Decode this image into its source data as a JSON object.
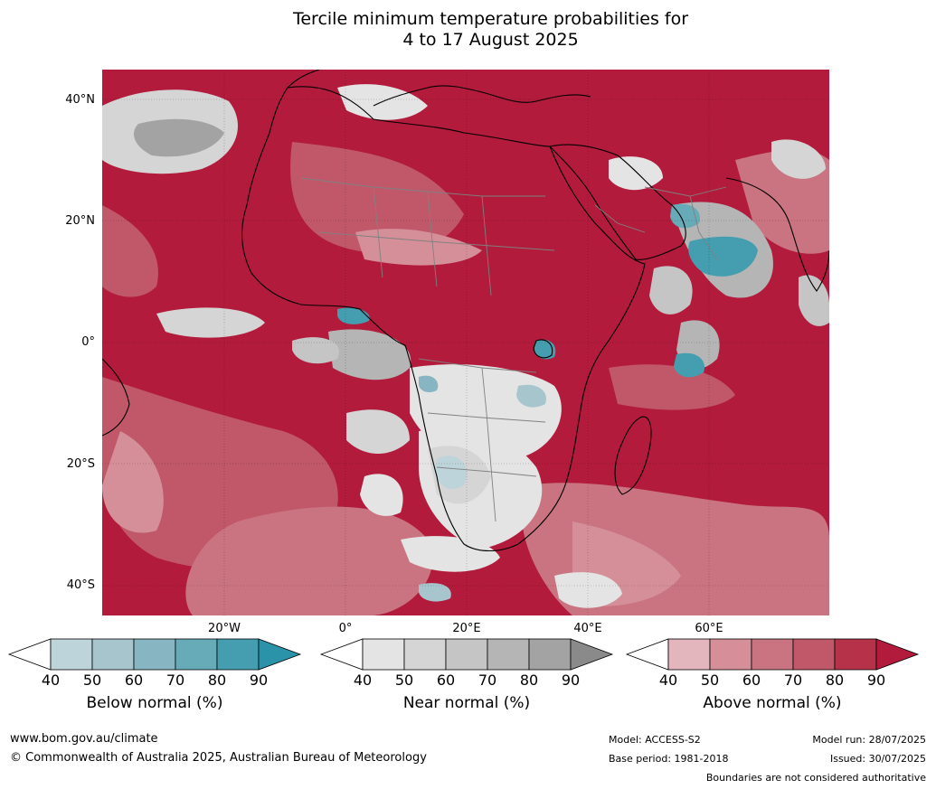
{
  "title": {
    "line1": "Tercile minimum temperature probabilities for",
    "line2": "4 to 17 August 2025"
  },
  "lat_labels": [
    "40°N",
    "20°N",
    "0°",
    "20°S",
    "40°S"
  ],
  "lon_labels": [
    "20°W",
    "0°",
    "20°E",
    "40°E",
    "60°E"
  ],
  "colorbars": [
    {
      "title": "Below normal (%)",
      "ticks": [
        "40",
        "50",
        "60",
        "70",
        "80",
        "90"
      ],
      "colors": [
        "#ffffff",
        "#bed4db",
        "#a7c5cd",
        "#88b5c2",
        "#67abb8",
        "#449eb0",
        "#2a93aa"
      ]
    },
    {
      "title": "Near normal (%)",
      "ticks": [
        "40",
        "50",
        "60",
        "70",
        "80",
        "90"
      ],
      "colors": [
        "#ffffff",
        "#e4e4e4",
        "#d5d5d5",
        "#c5c5c5",
        "#b5b5b5",
        "#a3a3a3",
        "#8a8a8a"
      ]
    },
    {
      "title": "Above normal (%)",
      "ticks": [
        "40",
        "50",
        "60",
        "70",
        "80",
        "90"
      ],
      "colors": [
        "#ffffff",
        "#e3b6bd",
        "#d58f99",
        "#c97480",
        "#c0586a",
        "#b53249",
        "#b21b3b"
      ]
    }
  ],
  "map_colors": {
    "ocean_base": "#b21b3b",
    "land_lines": "#000000",
    "borders": "#808080"
  },
  "footer": {
    "url": "www.bom.gov.au/climate",
    "copyright": "© Commonwealth of Australia 2025, Australian Bureau of Meteorology",
    "model": "Model: ACCESS-S2",
    "base_period": "Base period: 1981-2018",
    "model_run": "Model run: 28/07/2025",
    "issued": "Issued: 30/07/2025",
    "disclaimer": "Boundaries are not considered authoritative"
  }
}
